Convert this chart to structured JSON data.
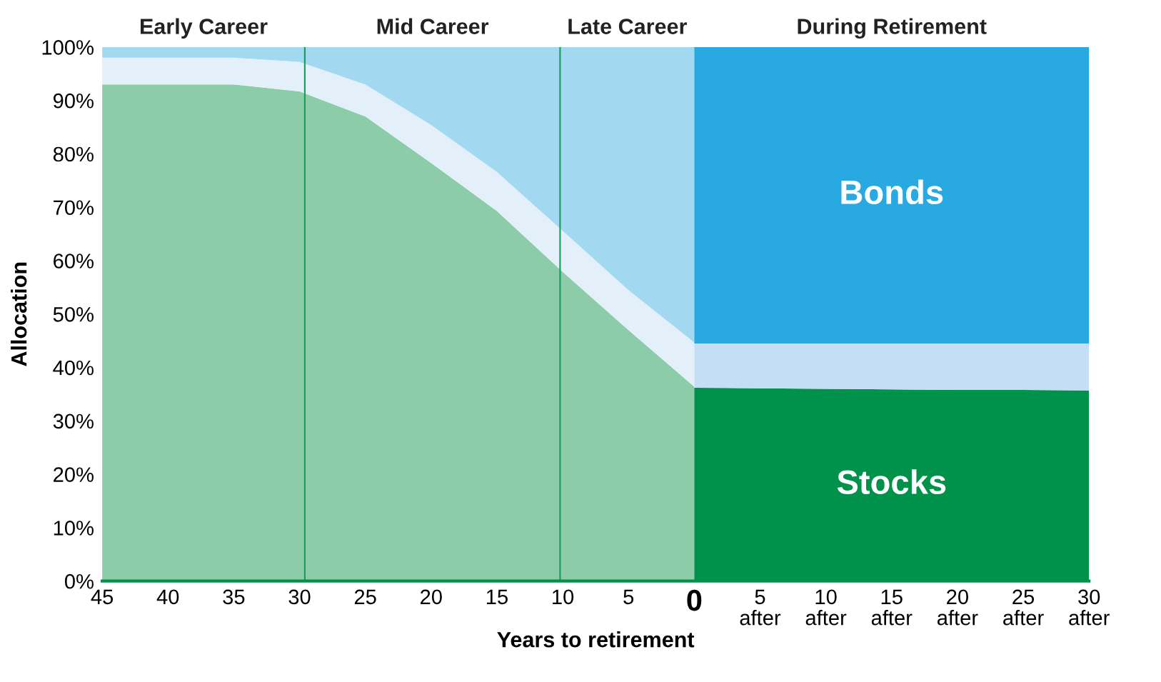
{
  "chart_data": {
    "type": "area",
    "stacked": true,
    "xlabel": "Years to retirement",
    "ylabel": "Allocation",
    "x": [
      -45,
      -40,
      -35,
      -30,
      -25,
      -20,
      -15,
      -10,
      -5,
      0,
      0,
      5,
      10,
      15,
      20,
      25,
      30
    ],
    "xlim": [
      -45,
      30
    ],
    "ylim": [
      0,
      100
    ],
    "xticks": [
      {
        "value": -45,
        "label": "45"
      },
      {
        "value": -40,
        "label": "40"
      },
      {
        "value": -35,
        "label": "35"
      },
      {
        "value": -30,
        "label": "30"
      },
      {
        "value": -25,
        "label": "25"
      },
      {
        "value": -20,
        "label": "20"
      },
      {
        "value": -15,
        "label": "15"
      },
      {
        "value": -10,
        "label": "10"
      },
      {
        "value": -5,
        "label": "5"
      },
      0,
      {
        "value": 5,
        "label": "5\nafter"
      },
      {
        "value": 10,
        "label": "10\nafter"
      },
      {
        "value": 15,
        "label": "15\nafter"
      },
      {
        "value": 20,
        "label": "20\nafter"
      },
      {
        "value": 25,
        "label": "25\nafter"
      },
      {
        "value": 30,
        "label": "30\nafter"
      }
    ],
    "yticks": [
      {
        "value": 0,
        "label": "0%"
      },
      {
        "value": 10,
        "label": "10%"
      },
      {
        "value": 20,
        "label": "20%"
      },
      {
        "value": 30,
        "label": "30%"
      },
      {
        "value": 40,
        "label": "40%"
      },
      {
        "value": 50,
        "label": "50%"
      },
      {
        "value": 60,
        "label": "60%"
      },
      {
        "value": 70,
        "label": "70%"
      },
      {
        "value": 80,
        "label": "80%"
      },
      {
        "value": 90,
        "label": "90%"
      },
      {
        "value": 100,
        "label": "100%"
      }
    ],
    "grid": false,
    "legend": false,
    "series": [
      {
        "color": "#8ccca8",
        "values": [
          93,
          93,
          93,
          91.7,
          87,
          78.3,
          69.3,
          57.9,
          47,
          36.4,
          null,
          null,
          null,
          null,
          null,
          null,
          null
        ]
      },
      {
        "name": "Stocks",
        "color": "#00924a",
        "values": [
          null,
          null,
          null,
          null,
          null,
          null,
          null,
          null,
          null,
          null,
          36.2,
          36.1,
          36,
          35.9,
          35.8,
          35.8,
          35.7
        ]
      },
      {
        "color": "#e3eff9",
        "values": [
          5,
          5,
          5,
          5.5,
          6,
          7.1,
          7.3,
          7.7,
          7.5,
          8.3,
          null,
          null,
          null,
          null,
          null,
          null,
          null
        ]
      },
      {
        "color": "#c3def5",
        "values": [
          null,
          null,
          null,
          null,
          null,
          null,
          null,
          null,
          null,
          null,
          8.3,
          8.4,
          8.5,
          8.6,
          8.7,
          8.7,
          8.8
        ]
      },
      {
        "color": "#a3d8f1",
        "values": [
          2,
          2,
          2,
          2.8,
          7,
          14.6,
          23.4,
          34.4,
          45.5,
          55.3,
          null,
          null,
          null,
          null,
          null,
          null,
          null
        ]
      },
      {
        "name": "Bonds",
        "color": "#29a9e1",
        "values": [
          null,
          null,
          null,
          null,
          null,
          null,
          null,
          null,
          null,
          null,
          55.5,
          55.5,
          55.5,
          55.5,
          55.5,
          55.5,
          55.5
        ]
      }
    ],
    "ref_lines": [
      {
        "axis": "x",
        "value": -29.6,
        "color": "#1a9a5a"
      },
      {
        "axis": "x",
        "value": -10.2,
        "color": "#1a9a5a"
      }
    ],
    "annotations": [
      "Early Career",
      "Mid Career",
      "Late Career",
      "During Retirement"
    ]
  }
}
